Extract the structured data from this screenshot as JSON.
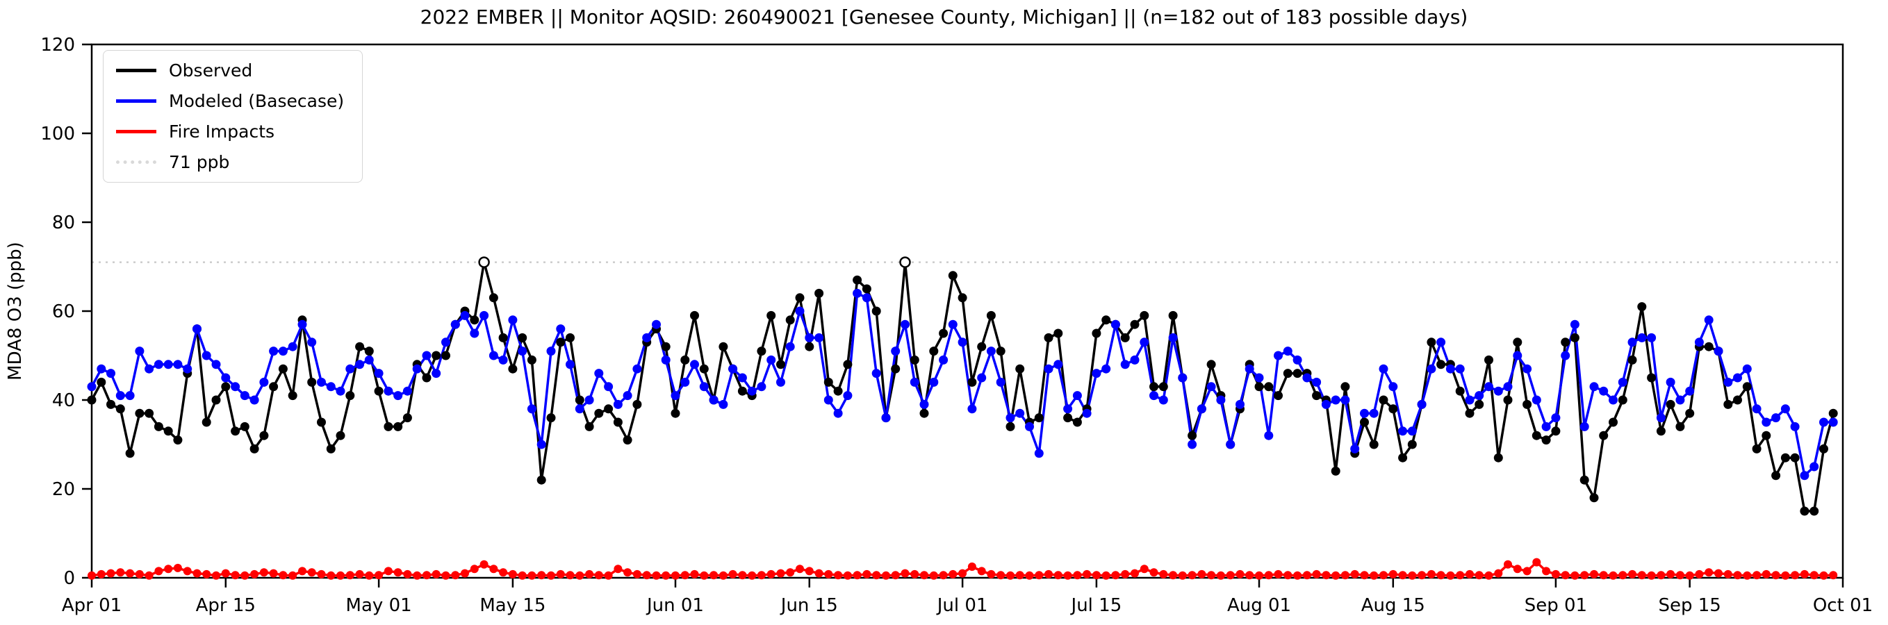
{
  "title": "2022 EMBER || Monitor AQSID: 260490021 [Genesee County, Michigan] || (n=182 out of 183 possible days)",
  "axes": {
    "ylabel": "MDA8 O3 (ppb)",
    "ylim": [
      0,
      120
    ],
    "yticks": [
      0,
      20,
      40,
      60,
      80,
      100,
      120
    ],
    "xtick_labels": [
      "Apr 01",
      "Apr 15",
      "May 01",
      "May 15",
      "Jun 01",
      "Jun 15",
      "Jul 01",
      "Jul 15",
      "Aug 01",
      "Aug 15",
      "Sep 01",
      "Sep 15",
      "Oct 01"
    ],
    "xtick_day_indices": [
      0,
      14,
      30,
      44,
      61,
      75,
      91,
      105,
      122,
      136,
      153,
      167,
      183
    ],
    "grid": "off",
    "threshold_line_color": "#cccccc"
  },
  "legend": {
    "position": "upper-left",
    "items": [
      {
        "label": "Observed",
        "color": "#000000",
        "style": "solid"
      },
      {
        "label": "Modeled (Basecase)",
        "color": "#0000ff",
        "style": "solid"
      },
      {
        "label": "Fire Impacts",
        "color": "#ff0000",
        "style": "solid"
      },
      {
        "label": "71 ppb",
        "color": "#d9d9d9",
        "style": "dotted"
      }
    ]
  },
  "chart_data": {
    "type": "line",
    "x_start": "Apr 01 2022",
    "x_end": "Sep 30 2022",
    "n_days": 183,
    "xlim_days": [
      0,
      183
    ],
    "ylim": [
      0,
      120
    ],
    "threshold": 71,
    "threshold_label": "71 ppb",
    "exceedance_day_indices": [
      41,
      85
    ],
    "series": [
      {
        "name": "Observed",
        "color": "#000000",
        "values": [
          40,
          44,
          39,
          38,
          28,
          37,
          37,
          34,
          33,
          31,
          46,
          56,
          35,
          40,
          43,
          33,
          34,
          29,
          32,
          43,
          47,
          41,
          58,
          44,
          35,
          29,
          32,
          41,
          52,
          51,
          42,
          34,
          34,
          36,
          48,
          45,
          50,
          50,
          57,
          60,
          58,
          71,
          63,
          54,
          47,
          54,
          49,
          22,
          36,
          53,
          54,
          40,
          34,
          37,
          38,
          35,
          31,
          39,
          53,
          56,
          52,
          37,
          49,
          59,
          47,
          40,
          52,
          47,
          42,
          41,
          51,
          59,
          48,
          58,
          63,
          52,
          64,
          44,
          42,
          48,
          67,
          65,
          60,
          36,
          47,
          71,
          49,
          37,
          51,
          55,
          68,
          63,
          44,
          52,
          59,
          51,
          34,
          47,
          35,
          36,
          54,
          55,
          36,
          35,
          38,
          55,
          58,
          57,
          54,
          57,
          59,
          43,
          43,
          59,
          45,
          32,
          38,
          48,
          41,
          30,
          38,
          48,
          43,
          43,
          41,
          46,
          46,
          46,
          41,
          40,
          24,
          43,
          28,
          35,
          30,
          40,
          38,
          27,
          30,
          39,
          53,
          48,
          48,
          42,
          37,
          39,
          49,
          27,
          40,
          53,
          39,
          32,
          31,
          33,
          53,
          54,
          22,
          18,
          32,
          35,
          40,
          49,
          61,
          45,
          33,
          39,
          34,
          37,
          52,
          52,
          51,
          39,
          40,
          43,
          29,
          32,
          23,
          27,
          27,
          15,
          15,
          29,
          37
        ]
      },
      {
        "name": "Modeled (Basecase)",
        "color": "#0000ff",
        "values": [
          43,
          47,
          46,
          41,
          41,
          51,
          47,
          48,
          48,
          48,
          47,
          56,
          50,
          48,
          45,
          43,
          41,
          40,
          44,
          51,
          51,
          52,
          57,
          53,
          44,
          43,
          42,
          47,
          48,
          49,
          46,
          42,
          41,
          42,
          47,
          50,
          46,
          53,
          57,
          59,
          55,
          59,
          50,
          49,
          58,
          51,
          38,
          30,
          51,
          56,
          48,
          38,
          40,
          46,
          43,
          39,
          41,
          47,
          54,
          57,
          49,
          41,
          44,
          48,
          43,
          40,
          39,
          47,
          45,
          42,
          43,
          49,
          44,
          52,
          60,
          54,
          54,
          40,
          37,
          41,
          64,
          63,
          46,
          36,
          51,
          57,
          44,
          39,
          44,
          49,
          57,
          53,
          38,
          45,
          51,
          44,
          36,
          37,
          34,
          28,
          47,
          48,
          38,
          41,
          37,
          46,
          47,
          57,
          48,
          49,
          53,
          41,
          40,
          54,
          45,
          30,
          38,
          43,
          40,
          30,
          39,
          47,
          45,
          32,
          50,
          51,
          49,
          45,
          44,
          39,
          40,
          40,
          29,
          37,
          37,
          47,
          43,
          33,
          33,
          39,
          47,
          53,
          47,
          47,
          40,
          41,
          43,
          42,
          43,
          50,
          47,
          40,
          34,
          36,
          50,
          57,
          34,
          43,
          42,
          40,
          44,
          53,
          54,
          54,
          36,
          44,
          40,
          42,
          53,
          58,
          51,
          44,
          45,
          47,
          38,
          35,
          36,
          38,
          34,
          23,
          25,
          35,
          35
        ]
      },
      {
        "name": "Fire Impacts",
        "color": "#ff0000",
        "values": [
          0.5,
          0.8,
          1,
          1.2,
          1,
          0.8,
          0.5,
          1.5,
          2,
          2.2,
          1.5,
          1,
          0.8,
          0.5,
          1,
          0.6,
          0.5,
          0.8,
          1.2,
          1,
          0.6,
          0.5,
          1.5,
          1.2,
          0.8,
          0.5,
          0.5,
          0.6,
          0.8,
          0.5,
          0.6,
          1.5,
          1.2,
          0.8,
          0.5,
          0.6,
          0.8,
          0.5,
          0.6,
          1,
          2,
          3,
          2,
          1.2,
          0.8,
          0.5,
          0.5,
          0.6,
          0.5,
          0.8,
          0.6,
          0.5,
          0.8,
          0.6,
          0.5,
          2,
          1.2,
          0.8,
          0.6,
          0.5,
          0.5,
          0.5,
          0.6,
          0.8,
          0.5,
          0.6,
          0.5,
          0.8,
          0.6,
          0.5,
          0.6,
          0.8,
          1,
          1.2,
          2,
          1.5,
          1,
          0.8,
          0.6,
          0.5,
          0.6,
          0.8,
          0.6,
          0.5,
          0.6,
          1,
          0.8,
          0.6,
          0.5,
          0.6,
          0.8,
          1,
          2.5,
          1.5,
          0.8,
          0.6,
          0.5,
          0.6,
          0.5,
          0.6,
          0.8,
          0.6,
          0.5,
          0.6,
          0.8,
          0.6,
          0.5,
          0.6,
          0.8,
          1,
          2,
          1.2,
          0.8,
          0.6,
          0.5,
          0.6,
          0.8,
          0.6,
          0.5,
          0.6,
          0.8,
          0.6,
          0.5,
          0.6,
          0.8,
          0.6,
          0.5,
          0.6,
          0.8,
          0.6,
          0.5,
          0.6,
          0.8,
          0.6,
          0.5,
          0.6,
          0.8,
          0.6,
          0.5,
          0.6,
          0.8,
          0.6,
          0.5,
          0.6,
          0.8,
          0.6,
          0.5,
          1,
          3,
          2,
          1.5,
          3.5,
          1.5,
          0.8,
          0.6,
          0.5,
          0.6,
          0.8,
          0.6,
          0.5,
          0.6,
          0.8,
          0.6,
          0.5,
          0.6,
          0.8,
          0.6,
          0.5,
          0.8,
          1.2,
          1,
          0.8,
          0.6,
          0.5,
          0.6,
          0.8,
          0.6,
          0.5,
          0.6,
          0.8,
          0.6,
          0.5,
          0.6
        ]
      }
    ]
  }
}
